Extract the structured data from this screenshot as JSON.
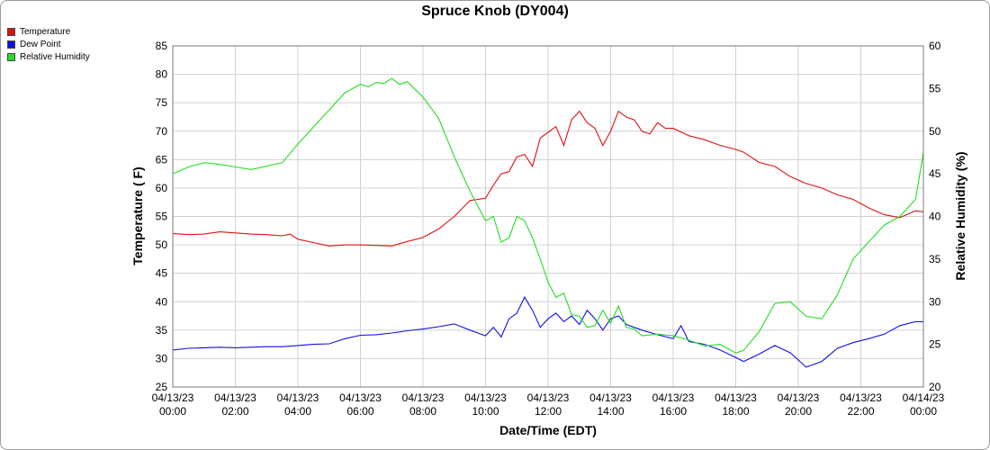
{
  "chart_data": {
    "type": "line",
    "title": "Spruce Knob (DY004)",
    "xlabel": "Date/Time (EDT)",
    "ylabel": "Temperature ( F)",
    "y2label": "Relative Humidity (%)",
    "xlim": [
      0,
      24
    ],
    "ylim": [
      25,
      85
    ],
    "y2lim": [
      20,
      60
    ],
    "grid": true,
    "legend_position": "top-left",
    "x_ticks": [
      {
        "value": 0,
        "line1": "04/13/23",
        "line2": "00:00"
      },
      {
        "value": 2,
        "line1": "04/13/23",
        "line2": "02:00"
      },
      {
        "value": 4,
        "line1": "04/13/23",
        "line2": "04:00"
      },
      {
        "value": 6,
        "line1": "04/13/23",
        "line2": "06:00"
      },
      {
        "value": 8,
        "line1": "04/13/23",
        "line2": "08:00"
      },
      {
        "value": 10,
        "line1": "04/13/23",
        "line2": "10:00"
      },
      {
        "value": 12,
        "line1": "04/13/23",
        "line2": "12:00"
      },
      {
        "value": 14,
        "line1": "04/13/23",
        "line2": "14:00"
      },
      {
        "value": 16,
        "line1": "04/13/23",
        "line2": "16:00"
      },
      {
        "value": 18,
        "line1": "04/13/23",
        "line2": "18:00"
      },
      {
        "value": 20,
        "line1": "04/13/23",
        "line2": "20:00"
      },
      {
        "value": 22,
        "line1": "04/13/23",
        "line2": "22:00"
      },
      {
        "value": 24,
        "line1": "04/14/23",
        "line2": "00:00"
      }
    ],
    "y_ticks": [
      25,
      30,
      35,
      40,
      45,
      50,
      55,
      60,
      65,
      70,
      75,
      80,
      85
    ],
    "y2_ticks": [
      20,
      25,
      30,
      35,
      40,
      45,
      50,
      55,
      60
    ],
    "series": [
      {
        "name": "Temperature",
        "color": "#e01010",
        "axis": "left",
        "x": [
          0,
          0.5,
          1,
          1.5,
          2,
          2.5,
          3,
          3.5,
          3.75,
          4,
          4.5,
          5,
          5.5,
          6,
          6.5,
          7,
          7.5,
          8,
          8.5,
          9,
          9.5,
          10,
          10.25,
          10.5,
          10.75,
          11,
          11.25,
          11.5,
          11.75,
          12,
          12.25,
          12.5,
          12.75,
          13,
          13.25,
          13.5,
          13.75,
          14,
          14.25,
          14.5,
          14.75,
          15,
          15.25,
          15.5,
          15.75,
          16,
          16.5,
          17,
          17.5,
          18,
          18.25,
          18.75,
          19.25,
          19.75,
          20.25,
          20.75,
          21.25,
          21.75,
          22.25,
          22.75,
          23.25,
          23.75,
          24
        ],
        "values": [
          52.0,
          51.8,
          51.9,
          52.3,
          52.1,
          51.9,
          51.8,
          51.6,
          51.9,
          51.0,
          50.4,
          49.8,
          50.0,
          50.0,
          49.9,
          49.8,
          50.6,
          51.3,
          52.8,
          55.0,
          57.8,
          58.2,
          60.5,
          62.5,
          62.9,
          65.5,
          65.9,
          63.8,
          68.8,
          69.8,
          70.8,
          67.5,
          72.0,
          73.5,
          71.5,
          70.5,
          67.5,
          70.0,
          73.5,
          72.5,
          72.0,
          70.0,
          69.5,
          71.5,
          70.5,
          70.5,
          69.2,
          68.5,
          67.5,
          66.8,
          66.3,
          64.5,
          63.8,
          62.0,
          60.8,
          60.0,
          58.8,
          58.0,
          56.5,
          55.3,
          54.8,
          56.0,
          55.8
        ]
      },
      {
        "name": "Dew Point",
        "color": "#1010e0",
        "axis": "left",
        "x": [
          0,
          0.5,
          1,
          1.5,
          2,
          2.5,
          3,
          3.5,
          4,
          4.5,
          5,
          5.5,
          6,
          6.5,
          7,
          7.5,
          8,
          8.5,
          9,
          9.5,
          10,
          10.25,
          10.5,
          10.75,
          11,
          11.25,
          11.5,
          11.75,
          12,
          12.25,
          12.5,
          12.75,
          13,
          13.25,
          13.5,
          13.75,
          14,
          14.25,
          14.5,
          14.75,
          15,
          15.5,
          16,
          16.25,
          16.5,
          17,
          17.5,
          18,
          18.25,
          18.75,
          19.25,
          19.75,
          20.25,
          20.75,
          21.25,
          21.75,
          22.25,
          22.75,
          23.25,
          23.75,
          24
        ],
        "values": [
          31.5,
          31.8,
          31.9,
          32.0,
          31.9,
          32.0,
          32.1,
          32.1,
          32.3,
          32.5,
          32.6,
          33.5,
          34.1,
          34.2,
          34.5,
          34.9,
          35.2,
          35.6,
          36.1,
          35.0,
          34.0,
          35.5,
          33.8,
          37.0,
          38.0,
          40.8,
          38.5,
          35.5,
          37.0,
          38.0,
          36.5,
          37.5,
          36.0,
          38.5,
          37.0,
          35.0,
          37.0,
          37.5,
          36.0,
          35.5,
          35.0,
          34.2,
          33.5,
          35.8,
          33.0,
          32.5,
          31.5,
          30.2,
          29.5,
          30.8,
          32.3,
          31.0,
          28.5,
          29.5,
          31.8,
          32.8,
          33.5,
          34.3,
          35.8,
          36.5,
          36.5
        ]
      },
      {
        "name": "Relative Humidity",
        "color": "#22dd22",
        "axis": "right",
        "x": [
          0,
          0.5,
          1,
          1.5,
          2,
          2.5,
          3,
          3.5,
          4,
          4.5,
          5,
          5.5,
          6,
          6.25,
          6.5,
          6.75,
          7,
          7.25,
          7.5,
          8,
          8.5,
          9,
          9.5,
          10,
          10.25,
          10.5,
          10.75,
          11,
          11.25,
          11.5,
          11.75,
          12,
          12.25,
          12.5,
          12.75,
          13,
          13.25,
          13.5,
          13.75,
          14,
          14.25,
          14.5,
          14.75,
          15,
          15.5,
          16,
          16.5,
          17,
          17.5,
          18,
          18.25,
          18.75,
          19.25,
          19.75,
          20.25,
          20.75,
          21.25,
          21.75,
          22.25,
          22.75,
          23.25,
          23.75,
          24
        ],
        "values": [
          45.0,
          45.8,
          46.3,
          46.1,
          45.8,
          45.5,
          45.9,
          46.3,
          48.5,
          50.5,
          52.5,
          54.5,
          55.5,
          55.2,
          55.7,
          55.6,
          56.2,
          55.5,
          55.8,
          54.0,
          51.5,
          47.0,
          43.0,
          39.5,
          40.0,
          37.0,
          37.5,
          40.0,
          39.5,
          37.5,
          35.0,
          32.3,
          30.5,
          31.0,
          28.5,
          28.3,
          27.0,
          27.2,
          29.0,
          27.5,
          29.5,
          27.0,
          26.8,
          26.0,
          26.2,
          26.0,
          25.5,
          24.8,
          25.0,
          24.0,
          24.3,
          26.5,
          29.8,
          30.0,
          28.3,
          28.0,
          30.8,
          35.0,
          37.0,
          39.0,
          40.0,
          42.0,
          47.5
        ]
      }
    ]
  }
}
